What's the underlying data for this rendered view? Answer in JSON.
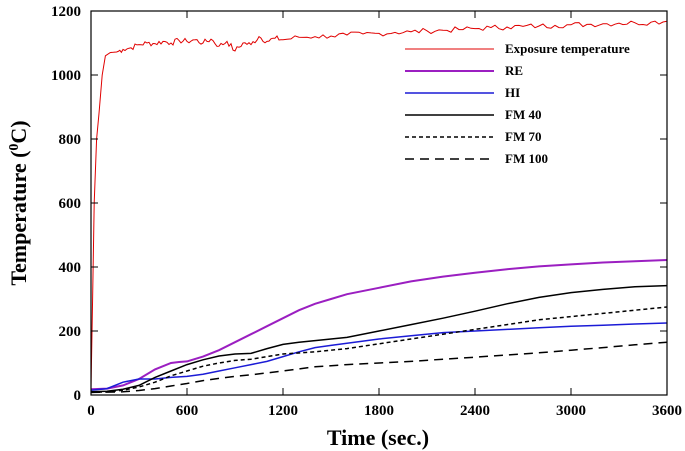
{
  "chart_data": {
    "type": "line",
    "xlabel": "Time (sec.)",
    "ylabel_main": "Temperature (",
    "ylabel_sup": "0",
    "ylabel_end": "C)",
    "xlim": [
      0,
      3600
    ],
    "ylim": [
      0,
      1200
    ],
    "x_ticks": [
      0,
      600,
      1200,
      1800,
      2400,
      3000,
      3600
    ],
    "y_ticks": [
      0,
      200,
      400,
      600,
      800,
      1000,
      1200
    ],
    "grid": false,
    "legend_position": "top-right",
    "series": [
      {
        "name": "Exposure temperature",
        "color": "#e00000",
        "dash": "solid",
        "points": [
          [
            0,
            20
          ],
          [
            10,
            300
          ],
          [
            20,
            600
          ],
          [
            35,
            800
          ],
          [
            50,
            880
          ],
          [
            70,
            1000
          ],
          [
            90,
            1060
          ],
          [
            120,
            1070
          ],
          [
            160,
            1072
          ],
          [
            200,
            1080
          ],
          [
            250,
            1085
          ],
          [
            300,
            1095
          ],
          [
            350,
            1100
          ],
          [
            400,
            1098
          ],
          [
            450,
            1105
          ],
          [
            500,
            1100
          ],
          [
            550,
            1108
          ],
          [
            600,
            1105
          ],
          [
            650,
            1110
          ],
          [
            700,
            1100
          ],
          [
            750,
            1112
          ],
          [
            800,
            1090
          ],
          [
            850,
            1105
          ],
          [
            900,
            1075
          ],
          [
            950,
            1100
          ],
          [
            1000,
            1095
          ],
          [
            1050,
            1120
          ],
          [
            1100,
            1105
          ],
          [
            1150,
            1115
          ],
          [
            1200,
            1110
          ],
          [
            1300,
            1118
          ],
          [
            1400,
            1120
          ],
          [
            1500,
            1122
          ],
          [
            1600,
            1125
          ],
          [
            1700,
            1128
          ],
          [
            1800,
            1130
          ],
          [
            1900,
            1133
          ],
          [
            2000,
            1135
          ],
          [
            2100,
            1138
          ],
          [
            2200,
            1140
          ],
          [
            2300,
            1142
          ],
          [
            2400,
            1145
          ],
          [
            2500,
            1148
          ],
          [
            2600,
            1150
          ],
          [
            2700,
            1152
          ],
          [
            2800,
            1153
          ],
          [
            2900,
            1155
          ],
          [
            3000,
            1157
          ],
          [
            3100,
            1158
          ],
          [
            3200,
            1160
          ],
          [
            3300,
            1162
          ],
          [
            3400,
            1163
          ],
          [
            3500,
            1165
          ],
          [
            3600,
            1168
          ]
        ],
        "noise": true
      },
      {
        "name": "RE",
        "color": "#9b1fc1",
        "dash": "solid",
        "points": [
          [
            0,
            18
          ],
          [
            100,
            20
          ],
          [
            200,
            30
          ],
          [
            300,
            50
          ],
          [
            400,
            80
          ],
          [
            500,
            100
          ],
          [
            550,
            103
          ],
          [
            600,
            105
          ],
          [
            700,
            120
          ],
          [
            800,
            140
          ],
          [
            900,
            165
          ],
          [
            1000,
            190
          ],
          [
            1100,
            215
          ],
          [
            1200,
            240
          ],
          [
            1300,
            265
          ],
          [
            1400,
            285
          ],
          [
            1500,
            300
          ],
          [
            1600,
            315
          ],
          [
            1800,
            335
          ],
          [
            2000,
            355
          ],
          [
            2200,
            370
          ],
          [
            2400,
            382
          ],
          [
            2600,
            393
          ],
          [
            2800,
            402
          ],
          [
            3000,
            408
          ],
          [
            3200,
            414
          ],
          [
            3400,
            418
          ],
          [
            3600,
            422
          ]
        ]
      },
      {
        "name": "HI",
        "color": "#1b1bd6",
        "dash": "solid",
        "points": [
          [
            0,
            15
          ],
          [
            100,
            20
          ],
          [
            200,
            40
          ],
          [
            300,
            50
          ],
          [
            400,
            50
          ],
          [
            500,
            55
          ],
          [
            600,
            58
          ],
          [
            700,
            65
          ],
          [
            800,
            75
          ],
          [
            900,
            85
          ],
          [
            1000,
            95
          ],
          [
            1100,
            105
          ],
          [
            1200,
            120
          ],
          [
            1300,
            135
          ],
          [
            1400,
            148
          ],
          [
            1500,
            155
          ],
          [
            1600,
            162
          ],
          [
            1800,
            175
          ],
          [
            2000,
            185
          ],
          [
            2200,
            195
          ],
          [
            2400,
            200
          ],
          [
            2600,
            205
          ],
          [
            2800,
            210
          ],
          [
            3000,
            215
          ],
          [
            3200,
            218
          ],
          [
            3400,
            222
          ],
          [
            3600,
            225
          ]
        ]
      },
      {
        "name": "FM 40",
        "color": "#000000",
        "dash": "solid",
        "points": [
          [
            0,
            10
          ],
          [
            100,
            12
          ],
          [
            200,
            18
          ],
          [
            300,
            30
          ],
          [
            400,
            55
          ],
          [
            500,
            75
          ],
          [
            600,
            95
          ],
          [
            700,
            110
          ],
          [
            800,
            122
          ],
          [
            900,
            128
          ],
          [
            1000,
            130
          ],
          [
            1100,
            145
          ],
          [
            1200,
            158
          ],
          [
            1300,
            165
          ],
          [
            1400,
            170
          ],
          [
            1500,
            175
          ],
          [
            1600,
            180
          ],
          [
            1800,
            200
          ],
          [
            2000,
            220
          ],
          [
            2200,
            240
          ],
          [
            2400,
            262
          ],
          [
            2600,
            285
          ],
          [
            2800,
            305
          ],
          [
            3000,
            320
          ],
          [
            3200,
            330
          ],
          [
            3400,
            338
          ],
          [
            3600,
            342
          ]
        ]
      },
      {
        "name": "FM 70",
        "color": "#000000",
        "dash": "4,3",
        "points": [
          [
            0,
            8
          ],
          [
            100,
            10
          ],
          [
            200,
            15
          ],
          [
            300,
            25
          ],
          [
            400,
            40
          ],
          [
            500,
            60
          ],
          [
            600,
            75
          ],
          [
            700,
            90
          ],
          [
            800,
            100
          ],
          [
            900,
            108
          ],
          [
            1000,
            112
          ],
          [
            1100,
            120
          ],
          [
            1200,
            128
          ],
          [
            1400,
            135
          ],
          [
            1600,
            145
          ],
          [
            1800,
            160
          ],
          [
            2000,
            175
          ],
          [
            2200,
            190
          ],
          [
            2400,
            205
          ],
          [
            2600,
            220
          ],
          [
            2800,
            235
          ],
          [
            3000,
            245
          ],
          [
            3200,
            255
          ],
          [
            3400,
            265
          ],
          [
            3600,
            275
          ]
        ]
      },
      {
        "name": "FM 100",
        "color": "#000000",
        "dash": "9,6",
        "points": [
          [
            0,
            8
          ],
          [
            100,
            9
          ],
          [
            200,
            10
          ],
          [
            300,
            14
          ],
          [
            400,
            20
          ],
          [
            500,
            28
          ],
          [
            600,
            36
          ],
          [
            700,
            45
          ],
          [
            800,
            52
          ],
          [
            900,
            58
          ],
          [
            1000,
            63
          ],
          [
            1200,
            75
          ],
          [
            1400,
            88
          ],
          [
            1600,
            95
          ],
          [
            1800,
            100
          ],
          [
            2000,
            105
          ],
          [
            2200,
            112
          ],
          [
            2400,
            118
          ],
          [
            2600,
            125
          ],
          [
            2800,
            132
          ],
          [
            3000,
            140
          ],
          [
            3200,
            148
          ],
          [
            3400,
            157
          ],
          [
            3600,
            165
          ]
        ]
      }
    ]
  }
}
